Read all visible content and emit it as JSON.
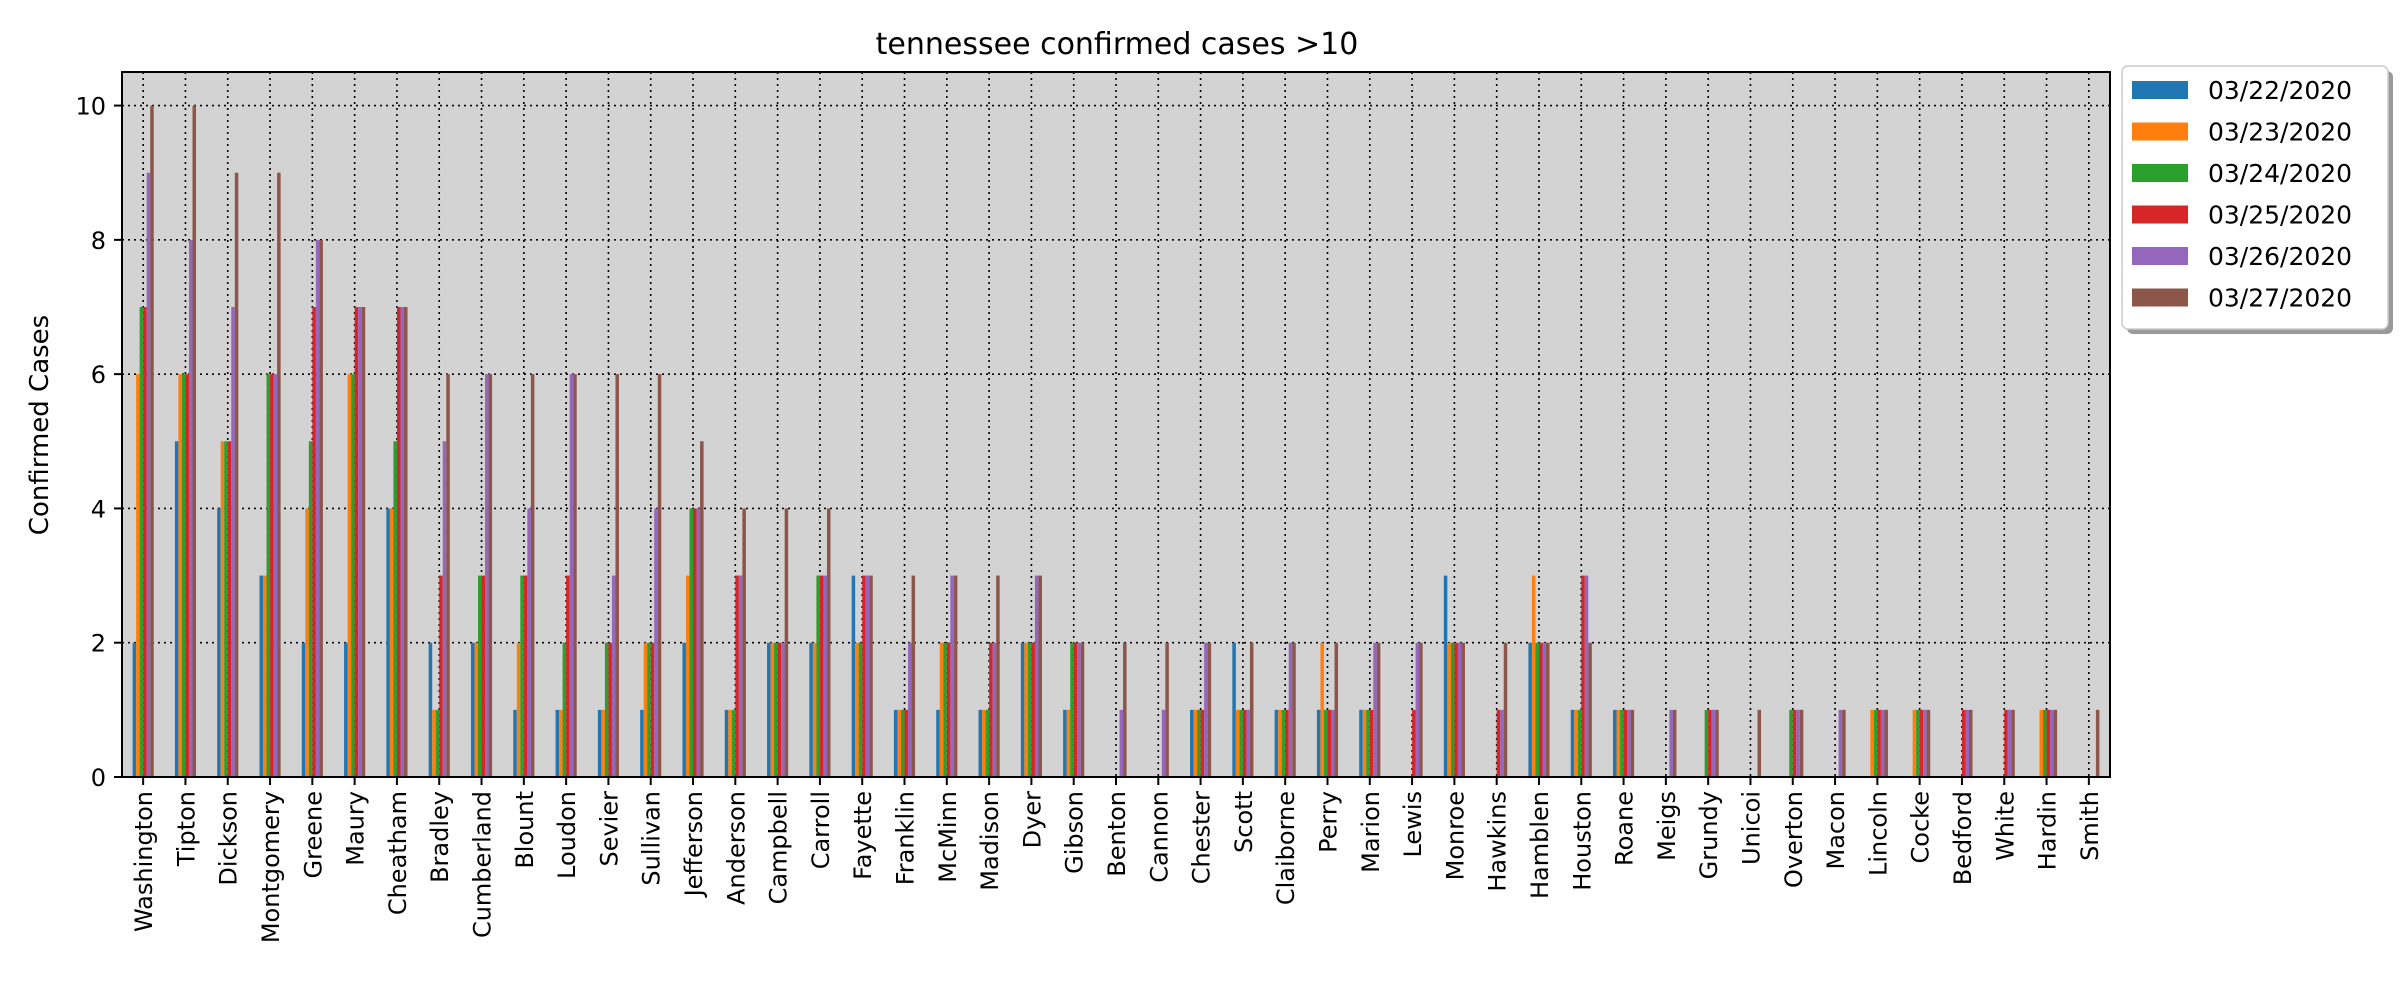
{
  "chart_data": {
    "type": "bar",
    "title": "tennessee confirmed cases >10",
    "xlabel": "",
    "ylabel": "Confirmed Cases",
    "ylim": [
      0,
      10.5
    ],
    "yticks": [
      0,
      2,
      4,
      6,
      8,
      10
    ],
    "grid": true,
    "legend_position": "outside top-right",
    "background": "#d3d3d3",
    "categories": [
      "Washington",
      "Tipton",
      "Dickson",
      "Montgomery",
      "Greene",
      "Maury",
      "Cheatham",
      "Bradley",
      "Cumberland",
      "Blount",
      "Loudon",
      "Sevier",
      "Sullivan",
      "Jefferson",
      "Anderson",
      "Campbell",
      "Carroll",
      "Fayette",
      "Franklin",
      "McMinn",
      "Madison",
      "Dyer",
      "Gibson",
      "Benton",
      "Cannon",
      "Chester",
      "Scott",
      "Claiborne",
      "Perry",
      "Marion",
      "Lewis",
      "Monroe",
      "Hawkins",
      "Hamblen",
      "Houston",
      "Roane",
      "Meigs",
      "Grundy",
      "Unicoi",
      "Overton",
      "Macon",
      "Lincoln",
      "Cocke",
      "Bedford",
      "White",
      "Hardin",
      "Smith"
    ],
    "series": [
      {
        "name": "03/22/2020",
        "color": "#1f77b4",
        "values": [
          2,
          5,
          4,
          3,
          2,
          2,
          4,
          2,
          2,
          1,
          1,
          1,
          1,
          2,
          1,
          2,
          2,
          3,
          1,
          1,
          1,
          2,
          1,
          0,
          0,
          1,
          2,
          1,
          1,
          1,
          0,
          3,
          0,
          2,
          1,
          1,
          0,
          0,
          0,
          0,
          0,
          0,
          0,
          0,
          0,
          0,
          0
        ]
      },
      {
        "name": "03/23/2020",
        "color": "#ff7f0e",
        "values": [
          6,
          6,
          5,
          3,
          4,
          6,
          4,
          1,
          2,
          2,
          1,
          1,
          2,
          3,
          1,
          2,
          2,
          2,
          1,
          2,
          1,
          2,
          1,
          0,
          0,
          1,
          1,
          1,
          2,
          1,
          0,
          2,
          0,
          3,
          1,
          1,
          0,
          0,
          0,
          0,
          0,
          1,
          1,
          0,
          0,
          1,
          0
        ]
      },
      {
        "name": "03/24/2020",
        "color": "#2ca02c",
        "values": [
          7,
          6,
          5,
          6,
          5,
          6,
          5,
          1,
          3,
          3,
          2,
          2,
          2,
          4,
          1,
          2,
          3,
          2,
          1,
          2,
          1,
          2,
          2,
          0,
          0,
          1,
          1,
          1,
          1,
          1,
          0,
          2,
          0,
          2,
          1,
          1,
          0,
          1,
          0,
          1,
          0,
          1,
          1,
          0,
          0,
          1,
          0
        ]
      },
      {
        "name": "03/25/2020",
        "color": "#d62728",
        "values": [
          7,
          6,
          5,
          6,
          7,
          7,
          7,
          3,
          3,
          3,
          3,
          2,
          2,
          4,
          3,
          2,
          3,
          3,
          1,
          2,
          2,
          2,
          2,
          0,
          0,
          1,
          1,
          1,
          1,
          1,
          1,
          2,
          1,
          2,
          3,
          1,
          0,
          1,
          0,
          1,
          0,
          1,
          1,
          1,
          1,
          1,
          0
        ]
      },
      {
        "name": "03/26/2020",
        "color": "#9467bd",
        "values": [
          9,
          8,
          7,
          6,
          8,
          7,
          7,
          5,
          6,
          4,
          6,
          3,
          4,
          4,
          3,
          2,
          3,
          3,
          2,
          3,
          2,
          3,
          2,
          1,
          1,
          2,
          1,
          2,
          1,
          2,
          2,
          2,
          1,
          2,
          3,
          1,
          1,
          1,
          0,
          1,
          1,
          1,
          1,
          1,
          1,
          1,
          0
        ]
      },
      {
        "name": "03/27/2020",
        "color": "#8c564b",
        "values": [
          10,
          10,
          9,
          9,
          8,
          7,
          7,
          6,
          6,
          6,
          6,
          6,
          6,
          5,
          4,
          4,
          4,
          3,
          3,
          3,
          3,
          3,
          2,
          2,
          2,
          2,
          2,
          2,
          2,
          2,
          2,
          2,
          2,
          2,
          2,
          1,
          1,
          1,
          1,
          1,
          1,
          1,
          1,
          1,
          1,
          1,
          1
        ]
      }
    ]
  }
}
